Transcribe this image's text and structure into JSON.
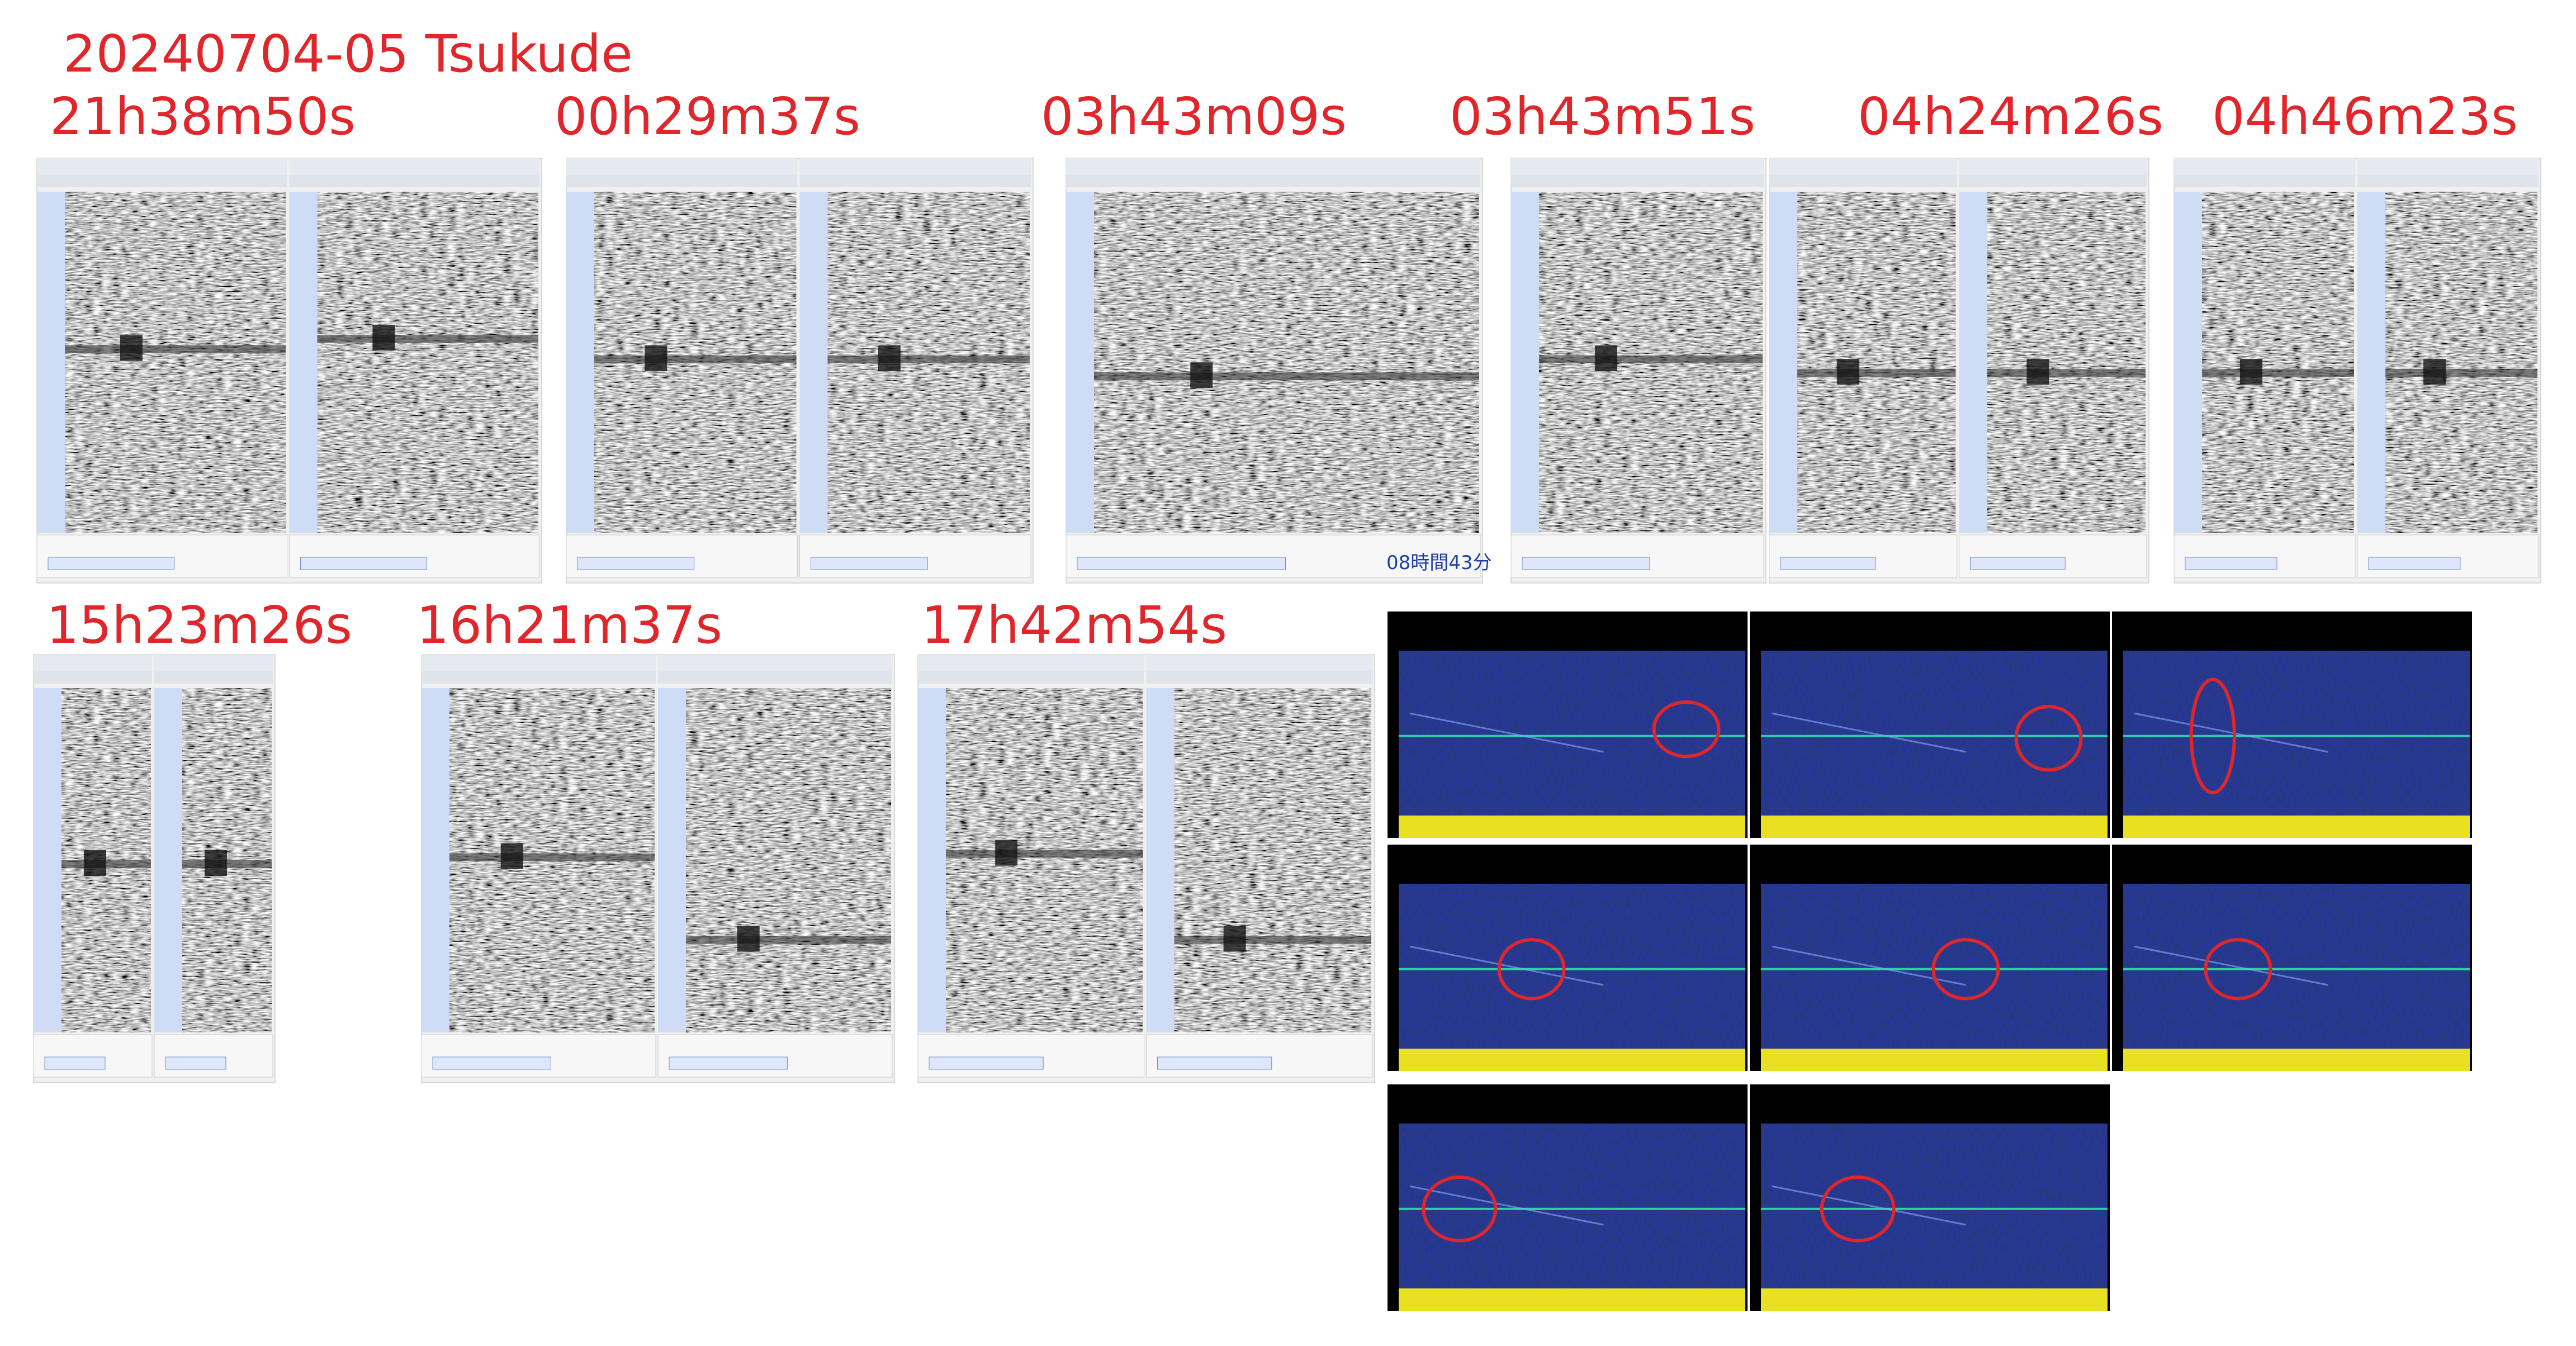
{
  "header": {
    "title": "20240704-05  Tsukude"
  },
  "row1_labels": [
    "21h38m50s",
    "00h29m37s",
    "03h43m09s",
    "03h43m51s",
    "04h24m26s",
    "04h46m23s"
  ],
  "row2_labels": [
    "15h23m26s",
    "16h21m37s",
    "17h42m54s"
  ],
  "overlay_text": "08時間43分"
}
